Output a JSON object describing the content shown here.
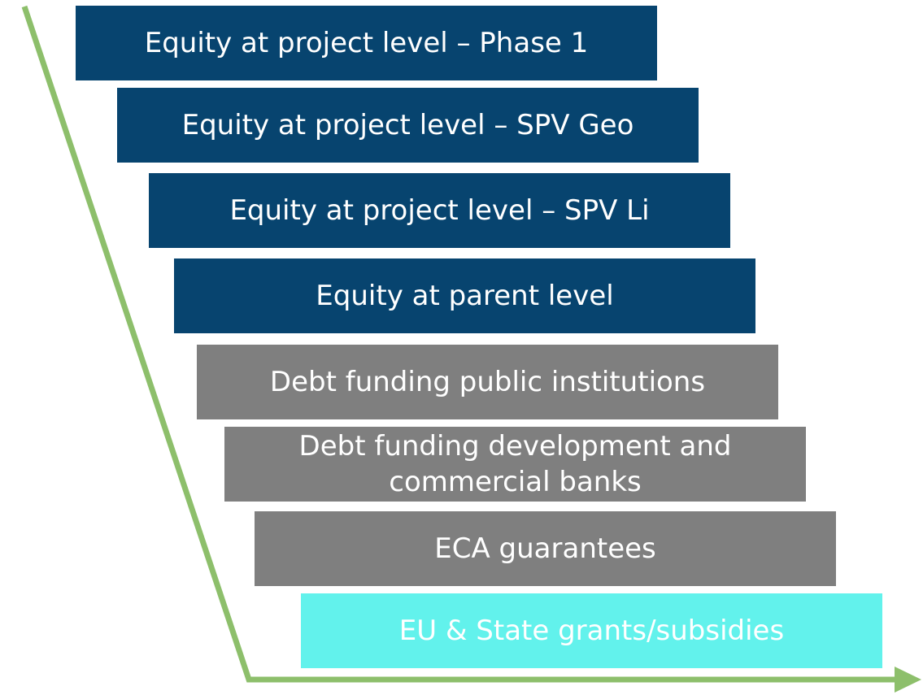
{
  "steps": [
    {
      "label": "Equity at project level – Phase 1"
    },
    {
      "label": "Equity at project level – SPV Geo"
    },
    {
      "label": "Equity at project level – SPV Li"
    },
    {
      "label": "Equity at parent level"
    },
    {
      "label": "Debt funding public institutions"
    },
    {
      "label": "Debt funding development and commercial banks"
    },
    {
      "label": "ECA guarantees"
    },
    {
      "label": "EU & State grants/subsidies"
    }
  ]
}
